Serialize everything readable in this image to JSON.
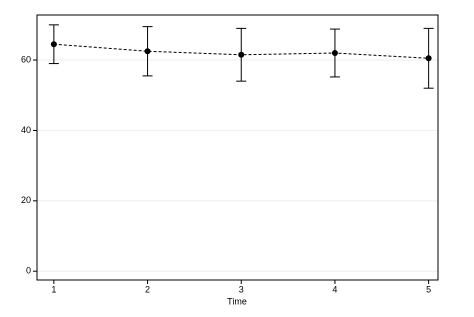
{
  "chart_data": {
    "type": "line",
    "x_label": "Time",
    "x": [
      1,
      2,
      3,
      4,
      5
    ],
    "series": [
      {
        "color": "#000000",
        "values": [
          64.5,
          62.5,
          61.5,
          62,
          60.5
        ],
        "errors": [
          5.5,
          7,
          7.5,
          6.8,
          8.5
        ]
      }
    ],
    "xlim": [
      0.82,
      5.1
    ],
    "xticks": [
      1,
      2,
      3,
      4,
      5
    ],
    "ylim": [
      -2.5,
      72.8
    ],
    "yticks": [
      0,
      20,
      40,
      60
    ],
    "grid": true,
    "line_style": "dashed"
  }
}
